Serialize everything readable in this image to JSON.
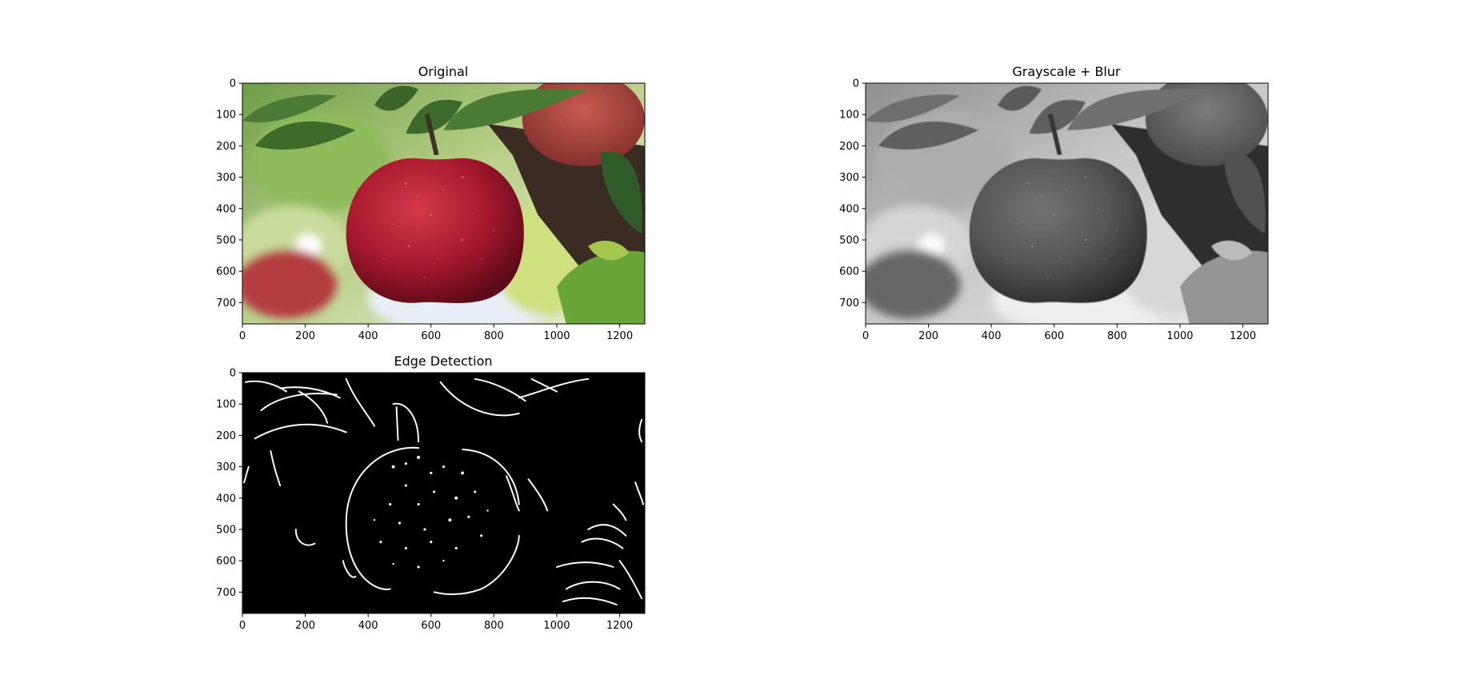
{
  "figure": {
    "panels": [
      {
        "title": "Original",
        "content": "apple-photo-color",
        "x_ticks": [
          "0",
          "200",
          "400",
          "600",
          "800",
          "1000",
          "1200"
        ],
        "y_ticks": [
          "0",
          "100",
          "200",
          "300",
          "400",
          "500",
          "600",
          "700"
        ]
      },
      {
        "title": "Grayscale + Blur",
        "content": "apple-photo-grayscale-blur",
        "x_ticks": [
          "0",
          "200",
          "400",
          "600",
          "800",
          "1000",
          "1200"
        ],
        "y_ticks": [
          "0",
          "100",
          "200",
          "300",
          "400",
          "500",
          "600",
          "700"
        ]
      },
      {
        "title": "Edge Detection",
        "content": "apple-edge-map",
        "x_ticks": [
          "0",
          "200",
          "400",
          "600",
          "800",
          "1000",
          "1200"
        ],
        "y_ticks": [
          "0",
          "100",
          "200",
          "300",
          "400",
          "500",
          "600",
          "700"
        ]
      }
    ]
  },
  "chart_data": [
    {
      "type": "image",
      "title": "Original",
      "xlim": [
        0,
        1280
      ],
      "ylim": [
        768,
        0
      ],
      "x_ticks": [
        0,
        200,
        400,
        600,
        800,
        1000,
        1200
      ],
      "y_ticks": [
        0,
        100,
        200,
        300,
        400,
        500,
        600,
        700
      ],
      "image": "color photograph of a red apple on a branch"
    },
    {
      "type": "image",
      "title": "Grayscale + Blur",
      "xlim": [
        0,
        1280
      ],
      "ylim": [
        768,
        0
      ],
      "x_ticks": [
        0,
        200,
        400,
        600,
        800,
        1000,
        1200
      ],
      "y_ticks": [
        0,
        100,
        200,
        300,
        400,
        500,
        600,
        700
      ],
      "image": "grayscale blurred version of the apple photograph"
    },
    {
      "type": "image",
      "title": "Edge Detection",
      "xlim": [
        0,
        1280
      ],
      "ylim": [
        768,
        0
      ],
      "x_ticks": [
        0,
        200,
        400,
        600,
        800,
        1000,
        1200
      ],
      "y_ticks": [
        0,
        100,
        200,
        300,
        400,
        500,
        600,
        700
      ],
      "image": "binary edge map: white edges on black background"
    }
  ],
  "colors": {
    "apple_red": "#a8192f",
    "leaf_green": "#3f6a2c",
    "edge_white": "#ffffff",
    "edge_background": "#000000"
  }
}
